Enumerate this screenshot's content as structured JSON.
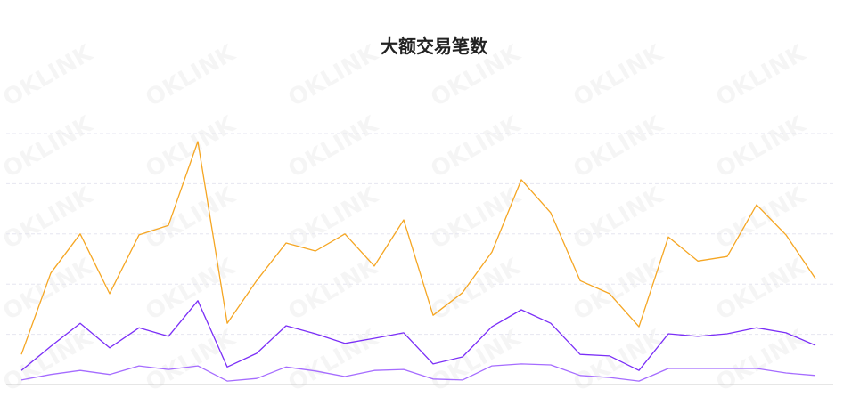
{
  "chart_data": {
    "type": "line",
    "title": "大额交易笔数",
    "xlabel": "",
    "ylabel": "",
    "ylim": [
      0,
      5
    ],
    "grid": true,
    "watermark": "OKLINK",
    "x": [
      1,
      2,
      3,
      4,
      5,
      6,
      7,
      8,
      9,
      10,
      11,
      12,
      13,
      14,
      15,
      16,
      17,
      18,
      19,
      20,
      21,
      22,
      23,
      24,
      25,
      26,
      27,
      28
    ],
    "series": [
      {
        "color": "#f5a623",
        "values": [
          0.6,
          2.22,
          3.0,
          1.81,
          2.98,
          3.17,
          4.84,
          1.22,
          2.07,
          2.82,
          2.66,
          3.0,
          2.36,
          3.28,
          1.38,
          1.83,
          2.64,
          4.08,
          3.42,
          2.07,
          1.81,
          1.15,
          2.94,
          2.46,
          2.55,
          3.58,
          2.98,
          2.11
        ]
      },
      {
        "color": "#7b2ff7",
        "values": [
          0.28,
          0.76,
          1.22,
          0.73,
          1.13,
          0.96,
          1.67,
          0.35,
          0.62,
          1.17,
          1.01,
          0.82,
          0.92,
          1.03,
          0.41,
          0.55,
          1.15,
          1.49,
          1.22,
          0.6,
          0.57,
          0.28,
          1.01,
          0.96,
          1.01,
          1.13,
          1.03,
          0.78
        ]
      },
      {
        "color": "#a56cff",
        "values": [
          0.09,
          0.2,
          0.28,
          0.2,
          0.37,
          0.3,
          0.37,
          0.07,
          0.12,
          0.35,
          0.27,
          0.16,
          0.28,
          0.3,
          0.11,
          0.09,
          0.37,
          0.41,
          0.39,
          0.18,
          0.14,
          0.07,
          0.32,
          0.32,
          0.32,
          0.32,
          0.23,
          0.18
        ]
      }
    ]
  }
}
